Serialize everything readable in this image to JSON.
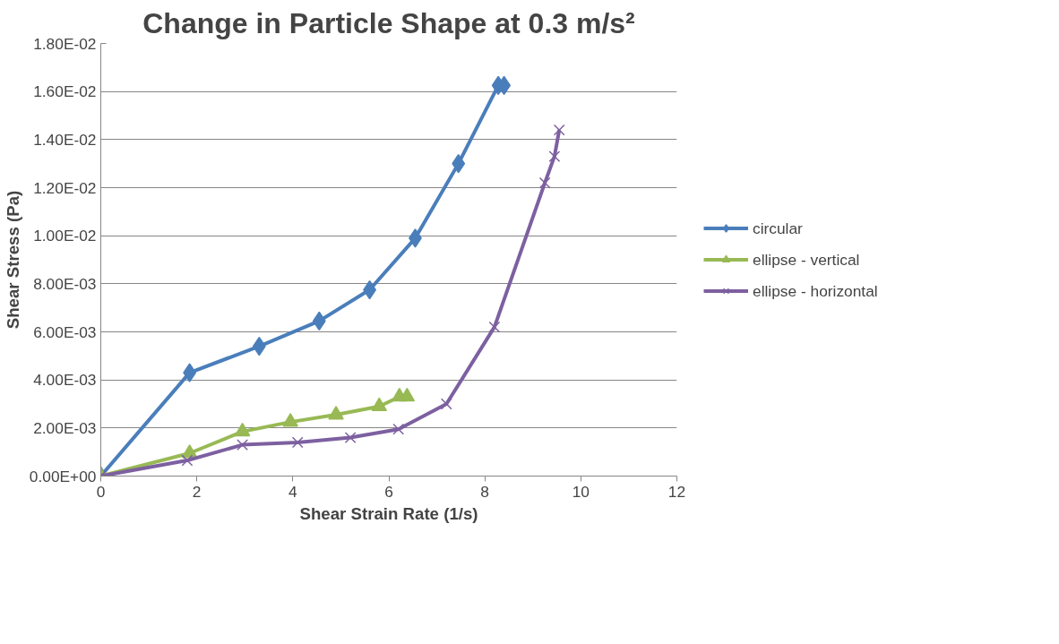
{
  "chart_data": {
    "type": "line",
    "title": "Change in Particle Shape at 0.3 m/s²",
    "xlabel": "Shear Strain Rate (1/s)",
    "ylabel": "Shear Stress (Pa)",
    "xlim": [
      0,
      12
    ],
    "xticks": [
      0,
      2,
      4,
      6,
      8,
      10,
      12
    ],
    "ylim": [
      0,
      0.018
    ],
    "yticks": [
      {
        "value": 0,
        "label": "0.00E+00"
      },
      {
        "value": 0.002,
        "label": "2.00E-03"
      },
      {
        "value": 0.004,
        "label": "4.00E-03"
      },
      {
        "value": 0.006,
        "label": "6.00E-03"
      },
      {
        "value": 0.008,
        "label": "8.00E-03"
      },
      {
        "value": 0.01,
        "label": "1.00E-02"
      },
      {
        "value": 0.012,
        "label": "1.20E-02"
      },
      {
        "value": 0.014,
        "label": "1.40E-02"
      },
      {
        "value": 0.016,
        "label": "1.60E-02"
      },
      {
        "value": 0.018,
        "label": "1.80E-02"
      }
    ],
    "grid": "y",
    "legend": "right",
    "line_style": "solid",
    "series": [
      {
        "name": "circular",
        "color": "#4a7ebb",
        "marker": "diamond",
        "x": [
          0,
          1.85,
          3.3,
          4.55,
          5.6,
          6.55,
          7.45,
          8.28,
          8.4
        ],
        "values": [
          0,
          0.0043,
          0.0054,
          0.00645,
          0.00775,
          0.0099,
          0.013,
          0.01625,
          0.01625
        ]
      },
      {
        "name": "ellipse - vertical",
        "color": "#98b954",
        "marker": "triangle",
        "x": [
          0,
          1.85,
          2.95,
          3.95,
          4.9,
          5.8,
          6.22,
          6.38
        ],
        "values": [
          0,
          0.00095,
          0.00185,
          0.00225,
          0.00255,
          0.0029,
          0.0033,
          0.0033
        ]
      },
      {
        "name": "ellipse - horizontal",
        "color": "#7d60a0",
        "marker": "x",
        "x": [
          0,
          1.8,
          2.95,
          4.1,
          5.2,
          6.2,
          7.2,
          8.2,
          9.25,
          9.45,
          9.55
        ],
        "values": [
          0,
          0.00065,
          0.0013,
          0.0014,
          0.0016,
          0.00195,
          0.003,
          0.0062,
          0.0122,
          0.0133,
          0.0144
        ]
      }
    ]
  }
}
